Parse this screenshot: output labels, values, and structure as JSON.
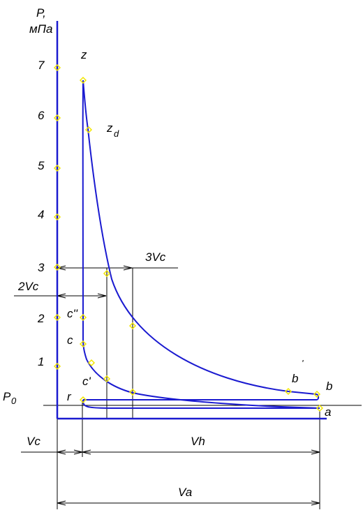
{
  "axis": {
    "y_title_line1": "P,",
    "y_title_line2": "мПа",
    "y_ticks": [
      "7",
      "6",
      "5",
      "4",
      "3",
      "2",
      "1"
    ],
    "p0_label": "P",
    "p0_sub": "0"
  },
  "points": {
    "z": "z",
    "zd": "z",
    "zd_sub": "d",
    "c2": "c''",
    "c": "c",
    "c1": "c'",
    "r": "r",
    "b1": "b",
    "b1_mark": "'",
    "b": "b",
    "a": "a"
  },
  "dimensions": {
    "v3c": "3Vc",
    "v2c": "2Vc",
    "vc": "Vc",
    "vh": "Vh",
    "va": "Va"
  },
  "colors": {
    "curve": "#1a1ad0",
    "axis": "#1a1ad0",
    "dim": "#000000",
    "marker": "#f2e600"
  }
}
